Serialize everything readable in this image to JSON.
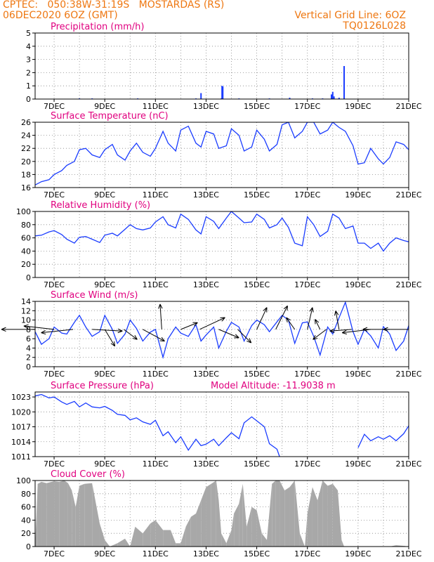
{
  "header": {
    "line1": "CPTEC:   050:38W-31:19S   MOSTARDAS (RS)",
    "line2": "06DEC2020 6OZ (GMT)",
    "grid_note": "Vertical Grid Line: 6OZ",
    "code": "TQ0126L028"
  },
  "x_axis": {
    "range_days": [
      6.25,
      21.0
    ],
    "tick_days": [
      7,
      9,
      11,
      13,
      15,
      17,
      19,
      21
    ],
    "tick_labels": [
      "7DEC",
      "9DEC",
      "11DEC",
      "13DEC",
      "15DEC",
      "17DEC",
      "19DEC",
      "21DEC"
    ]
  },
  "colors": {
    "line": "#1a3cff",
    "bar": "#1a3cff",
    "area": "#a8a8a8",
    "title": "#e0007f",
    "header": "#ee7711",
    "arrow": "#000000"
  },
  "chart_data": [
    {
      "id": "precip",
      "type": "bar",
      "title": "Precipitation (mm/h)",
      "ylim": [
        0,
        5
      ],
      "yticks": [
        0,
        1,
        2,
        3,
        4,
        5
      ],
      "x": [
        8.0,
        8.5,
        10.3,
        12.6,
        12.8,
        13.6,
        13.63,
        13.66,
        14.3,
        15.5,
        16.3,
        17.2,
        17.6,
        17.95,
        18.0,
        18.05,
        18.25,
        18.45
      ],
      "values": [
        0.05,
        0.05,
        0.05,
        0.05,
        0.45,
        0.05,
        1.0,
        0.95,
        0.05,
        0.05,
        0.1,
        0.05,
        0.05,
        0.35,
        0.55,
        0.2,
        0.1,
        2.5
      ]
    },
    {
      "id": "temp",
      "type": "line",
      "title": "Surface Temperature (nC)",
      "ylim": [
        16,
        26
      ],
      "yticks": [
        16,
        18,
        20,
        22,
        24,
        26
      ],
      "x": [
        6.25,
        6.5,
        6.8,
        7.0,
        7.3,
        7.5,
        7.8,
        8.0,
        8.25,
        8.5,
        8.8,
        9.0,
        9.3,
        9.5,
        9.8,
        10.0,
        10.25,
        10.5,
        10.8,
        11.0,
        11.3,
        11.5,
        11.8,
        12.0,
        12.3,
        12.6,
        12.8,
        13.0,
        13.3,
        13.5,
        13.8,
        14.0,
        14.3,
        14.5,
        14.8,
        15.0,
        15.3,
        15.5,
        15.8,
        16.0,
        16.25,
        16.5,
        16.8,
        17.0,
        17.25,
        17.5,
        17.8,
        18.0,
        18.25,
        18.5,
        18.8,
        19.0,
        19.25,
        19.5,
        19.8,
        20.0,
        20.25,
        20.5,
        20.8,
        21.0
      ],
      "values": [
        16.4,
        16.9,
        17.2,
        18.0,
        18.6,
        19.4,
        20.0,
        21.8,
        22.0,
        21.0,
        20.6,
        21.8,
        22.6,
        21.0,
        20.2,
        21.6,
        22.8,
        21.4,
        20.8,
        22.0,
        24.6,
        22.8,
        21.6,
        24.8,
        25.4,
        22.8,
        22.2,
        24.6,
        24.2,
        22.0,
        22.4,
        25.0,
        24.0,
        21.6,
        22.2,
        24.8,
        23.4,
        21.6,
        22.6,
        25.6,
        26.0,
        23.6,
        24.6,
        26.0,
        26.0,
        24.2,
        24.8,
        26.0,
        25.2,
        24.6,
        22.4,
        19.6,
        19.8,
        22.0,
        20.4,
        19.6,
        20.6,
        23.0,
        22.6,
        21.8
      ]
    },
    {
      "id": "rh",
      "type": "line",
      "title": "Relative Humidity (%)",
      "ylim": [
        0,
        100
      ],
      "yticks": [
        0,
        20,
        40,
        60,
        80,
        100
      ],
      "x": [
        6.25,
        6.5,
        6.8,
        7.0,
        7.3,
        7.5,
        7.8,
        8.0,
        8.25,
        8.5,
        8.8,
        9.0,
        9.3,
        9.5,
        9.8,
        10.0,
        10.25,
        10.5,
        10.8,
        11.0,
        11.3,
        11.5,
        11.8,
        12.0,
        12.3,
        12.6,
        12.8,
        13.0,
        13.3,
        13.5,
        13.8,
        14.0,
        14.3,
        14.5,
        14.8,
        15.0,
        15.3,
        15.5,
        15.8,
        16.0,
        16.25,
        16.5,
        16.8,
        17.0,
        17.25,
        17.5,
        17.8,
        18.0,
        18.25,
        18.5,
        18.8,
        19.0,
        19.25,
        19.5,
        19.8,
        20.0,
        20.25,
        20.5,
        20.8,
        21.0
      ],
      "values": [
        63,
        64,
        69,
        71,
        65,
        58,
        52,
        61,
        62,
        58,
        53,
        64,
        67,
        63,
        73,
        80,
        74,
        72,
        75,
        84,
        92,
        80,
        75,
        96,
        88,
        72,
        66,
        92,
        85,
        74,
        90,
        100,
        90,
        83,
        84,
        96,
        88,
        75,
        80,
        90,
        76,
        52,
        48,
        92,
        80,
        62,
        70,
        96,
        90,
        74,
        78,
        52,
        52,
        44,
        52,
        40,
        52,
        60,
        56,
        54
      ]
    },
    {
      "id": "wind",
      "type": "line",
      "title": "Surface Wind (m/s)",
      "ylim": [
        0,
        14
      ],
      "yticks": [
        0,
        2,
        4,
        6,
        8,
        10,
        12,
        14
      ],
      "x": [
        6.25,
        6.5,
        6.8,
        7.0,
        7.3,
        7.5,
        7.8,
        8.0,
        8.25,
        8.5,
        8.8,
        9.0,
        9.3,
        9.5,
        9.8,
        10.0,
        10.25,
        10.5,
        10.8,
        11.0,
        11.3,
        11.5,
        11.8,
        12.0,
        12.3,
        12.6,
        12.8,
        13.0,
        13.3,
        13.5,
        13.8,
        14.0,
        14.3,
        14.5,
        14.8,
        15.0,
        15.3,
        15.5,
        15.8,
        16.0,
        16.25,
        16.5,
        16.8,
        17.0,
        17.25,
        17.5,
        17.8,
        18.0,
        18.25,
        18.5,
        18.8,
        19.0,
        19.25,
        19.5,
        19.8,
        20.0,
        20.25,
        20.5,
        20.8,
        21.0
      ],
      "values": [
        7.5,
        4.8,
        6.0,
        8.5,
        7.2,
        7.0,
        9.5,
        11.0,
        8.5,
        6.5,
        7.5,
        11.0,
        8.0,
        5.0,
        7.0,
        10.0,
        8.2,
        5.5,
        7.4,
        8.0,
        2.0,
        6.0,
        8.5,
        7.2,
        6.5,
        9.0,
        5.5,
        6.8,
        8.5,
        4.0,
        7.6,
        9.5,
        8.5,
        5.5,
        8.8,
        10.0,
        9.0,
        7.5,
        9.6,
        11.0,
        10.0,
        5.0,
        9.4,
        9.6,
        6.5,
        2.5,
        8.5,
        7.0,
        10.5,
        13.8,
        7.5,
        4.8,
        8.0,
        6.6,
        4.0,
        8.6,
        7.0,
        3.5,
        5.5,
        8.8
      ],
      "vectors": [
        {
          "x": 6.25,
          "u": 4.0,
          "v": 0.0
        },
        {
          "x": 7.0,
          "u": 3.6,
          "v": -0.4
        },
        {
          "x": 7.75,
          "u": 3.8,
          "v": 0.4
        },
        {
          "x": 8.5,
          "u": -3.6,
          "v": 0.2
        },
        {
          "x": 9.0,
          "u": -1.2,
          "v": 2.0
        },
        {
          "x": 9.75,
          "u": -1.6,
          "v": 1.2
        },
        {
          "x": 10.5,
          "u": -2.6,
          "v": 1.4
        },
        {
          "x": 11.25,
          "u": 0.2,
          "v": -3.0
        },
        {
          "x": 12.0,
          "u": -2.0,
          "v": -0.8
        },
        {
          "x": 12.75,
          "u": -3.0,
          "v": -1.4
        },
        {
          "x": 13.5,
          "u": -2.4,
          "v": 1.0
        },
        {
          "x": 14.25,
          "u": -1.6,
          "v": 1.6
        },
        {
          "x": 15.0,
          "u": -1.2,
          "v": -2.6
        },
        {
          "x": 15.75,
          "u": -1.4,
          "v": -2.8
        },
        {
          "x": 16.5,
          "u": 1.0,
          "v": -1.4
        },
        {
          "x": 17.0,
          "u": -0.6,
          "v": -2.6
        },
        {
          "x": 17.5,
          "u": 0.6,
          "v": -1.2
        },
        {
          "x": 17.75,
          "u": 1.6,
          "v": 1.2
        },
        {
          "x": 18.25,
          "u": 0.4,
          "v": -2.2
        },
        {
          "x": 18.75,
          "u": 2.6,
          "v": 0.2
        },
        {
          "x": 19.5,
          "u": 3.4,
          "v": 0.4
        },
        {
          "x": 20.25,
          "u": 3.2,
          "v": 0.0
        },
        {
          "x": 21.0,
          "u": 3.0,
          "v": 0.0
        }
      ]
    },
    {
      "id": "press",
      "type": "line",
      "title": "Surface Pressure (hPa)",
      "annotation": "Model Altitude: -11.9038 m",
      "ylim": [
        1011,
        1024
      ],
      "yticks": [
        1011,
        1014,
        1017,
        1020,
        1023
      ],
      "x": [
        6.25,
        6.5,
        6.8,
        7.0,
        7.3,
        7.5,
        7.8,
        8.0,
        8.25,
        8.5,
        8.8,
        9.0,
        9.3,
        9.5,
        9.8,
        10.0,
        10.25,
        10.5,
        10.8,
        11.0,
        11.3,
        11.5,
        11.8,
        12.0,
        12.3,
        12.6,
        12.8,
        13.0,
        13.3,
        13.5,
        13.8,
        14.0,
        14.3,
        14.5,
        14.8,
        15.0,
        15.3,
        15.5,
        15.8,
        15.9,
        null,
        19.0,
        19.25,
        19.5,
        19.8,
        20.0,
        20.25,
        20.5,
        20.8,
        21.0
      ],
      "values": [
        1023.2,
        1023.5,
        1022.8,
        1023.0,
        1022.0,
        1021.5,
        1022.1,
        1021.0,
        1021.8,
        1021.0,
        1020.8,
        1021.1,
        1020.3,
        1019.5,
        1019.3,
        1018.4,
        1018.8,
        1018.0,
        1017.5,
        1018.3,
        1015.2,
        1016.0,
        1013.8,
        1015.0,
        1012.3,
        1014.5,
        1013.2,
        1013.5,
        1014.5,
        1013.2,
        1014.8,
        1015.8,
        1014.6,
        1017.8,
        1019.0,
        1018.2,
        1017.0,
        1013.6,
        1012.5,
        1011.0,
        null,
        1012.8,
        1015.5,
        1014.2,
        1015.0,
        1014.5,
        1015.2,
        1014.2,
        1015.6,
        1017.2
      ]
    },
    {
      "id": "cloud",
      "type": "area",
      "title": "Cloud Cover (%)",
      "ylim": [
        0,
        100
      ],
      "yticks": [
        0,
        20,
        40,
        60,
        80,
        100
      ],
      "x": [
        6.25,
        6.35,
        6.5,
        6.7,
        7.0,
        7.2,
        7.4,
        7.55,
        7.7,
        7.85,
        8.0,
        8.2,
        8.5,
        8.8,
        9.0,
        9.2,
        9.5,
        9.8,
        10.0,
        10.2,
        10.5,
        10.8,
        11.0,
        11.3,
        11.6,
        11.8,
        12.0,
        12.2,
        12.4,
        12.6,
        12.8,
        13.0,
        13.2,
        13.4,
        13.5,
        13.6,
        13.8,
        14.0,
        14.1,
        14.3,
        14.45,
        14.6,
        14.8,
        15.0,
        15.2,
        15.4,
        15.6,
        15.75,
        15.9,
        16.1,
        16.3,
        16.5,
        16.7,
        16.9,
        17.0,
        17.2,
        17.4,
        17.6,
        17.8,
        18.0,
        18.2,
        18.35,
        18.45,
        18.6,
        18.8,
        19.0,
        19.5,
        20.0,
        20.25,
        20.5,
        20.8,
        21.0
      ],
      "values": [
        0,
        95,
        98,
        96,
        99,
        98,
        100,
        96,
        85,
        60,
        92,
        95,
        96,
        35,
        10,
        0,
        5,
        12,
        0,
        30,
        20,
        35,
        40,
        25,
        25,
        5,
        5,
        30,
        45,
        50,
        70,
        90,
        95,
        100,
        70,
        20,
        5,
        25,
        50,
        65,
        95,
        30,
        60,
        55,
        20,
        10,
        95,
        100,
        100,
        85,
        90,
        100,
        20,
        0,
        50,
        90,
        70,
        100,
        92,
        95,
        85,
        10,
        0,
        0,
        0,
        0,
        0,
        0,
        0,
        2,
        1,
        0
      ]
    }
  ]
}
